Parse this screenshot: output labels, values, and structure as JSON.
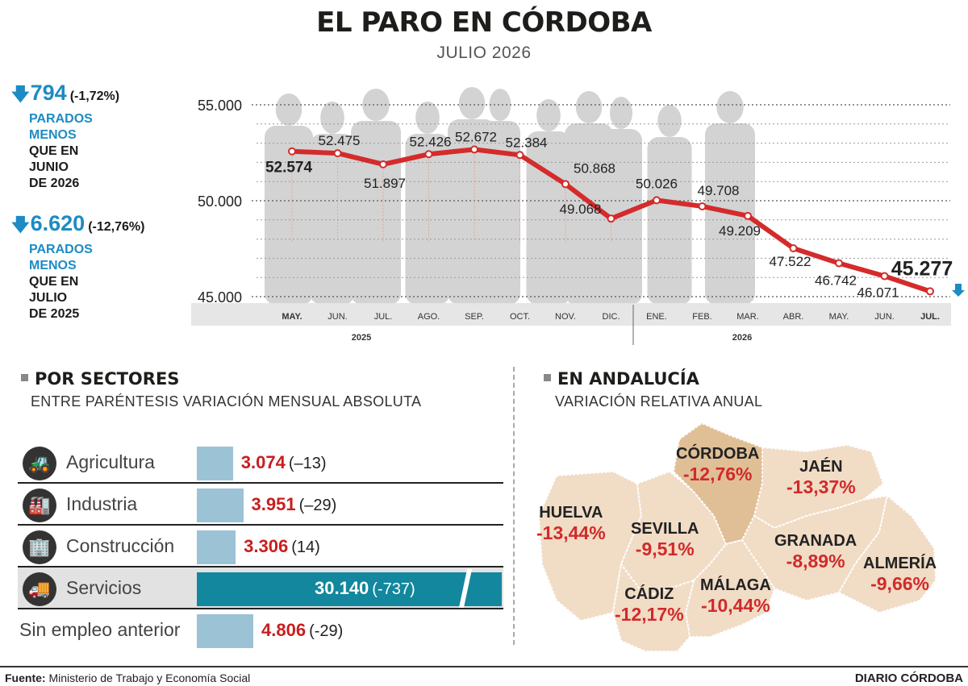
{
  "header": {
    "title": "EL PARO EN CÓRDOBA",
    "subtitle": "JULIO 2026"
  },
  "stats": [
    {
      "value": "794",
      "pct": "(-1,72%)",
      "line1": "PARADOS",
      "line2": "MENOS",
      "line3": "QUE EN",
      "line4": "JUNIO",
      "line5": "DE 2026"
    },
    {
      "value": "6.620",
      "pct": "(-12,76%)",
      "line1": "PARADOS",
      "line2": "MENOS",
      "line3": "QUE EN",
      "line4": "JULIO",
      "line5": "DE 2025"
    }
  ],
  "colors": {
    "line": "#d42b2b",
    "accent_blue": "#1d8bc4",
    "silhouette": "#d3d3d3",
    "servicios_bar": "#12879e",
    "sector_bar": "#9cc2d6",
    "map_fill": "#f1dcc5",
    "map_highlight": "#e0bf97"
  },
  "chart_data": {
    "type": "line",
    "categories": [
      "MAY.",
      "JUN.",
      "JUL.",
      "AGO.",
      "SEP.",
      "OCT.",
      "NOV.",
      "DIC.",
      "ENE.",
      "FEB.",
      "MAR.",
      "ABR.",
      "MAY.",
      "JUN.",
      "JUL."
    ],
    "values": [
      52574,
      52475,
      51897,
      52426,
      52672,
      52384,
      50868,
      49068,
      50026,
      49708,
      49209,
      47522,
      46742,
      46071,
      45277
    ],
    "value_labels": [
      "52.574",
      "52.475",
      "51.897",
      "52.426",
      "52.672",
      "52.384",
      "50.868",
      "49.068",
      "50.026",
      "49.708",
      "49.209",
      "47.522",
      "46.742",
      "46.071",
      "45.277"
    ],
    "years": [
      {
        "label": "2025"
      },
      {
        "label": "2026"
      }
    ],
    "yticks": [
      {
        "value": 55000,
        "label": "55.000"
      },
      {
        "value": 50000,
        "label": "50.000"
      },
      {
        "value": 45000,
        "label": "45.000"
      }
    ],
    "ylim": [
      45000,
      55000
    ],
    "grid": true
  },
  "sectors": {
    "title": "POR SECTORES",
    "subtitle": "ENTRE PARÉNTESIS VARIACIÓN MENSUAL ABSOLUTA",
    "max_value": 30140,
    "items": [
      {
        "name": "Agricultura",
        "value": 3074,
        "value_label": "3.074",
        "change": "(–13)",
        "icon": "tractor-icon"
      },
      {
        "name": "Industria",
        "value": 3951,
        "value_label": "3.951",
        "change": "(–29)",
        "icon": "factory-icon"
      },
      {
        "name": "Construcción",
        "value": 3306,
        "value_label": "3.306",
        "change": "(14)",
        "icon": "buildings-icon"
      },
      {
        "name": "Servicios",
        "value": 30140,
        "value_label": "30.140",
        "change": "(-737)",
        "icon": "truck-icon"
      },
      {
        "name": "Sin empleo anterior",
        "value": 4806,
        "value_label": "4.806",
        "change": "(-29)",
        "icon": ""
      }
    ]
  },
  "andalucia": {
    "title": "EN ANDALUCÍA",
    "subtitle": "VARIACIÓN RELATIVA ANUAL",
    "provinces": [
      {
        "name": "CÓRDOBA",
        "value": "-12,76%"
      },
      {
        "name": "JAÉN",
        "value": "-13,37%"
      },
      {
        "name": "HUELVA",
        "value": "-13,44%"
      },
      {
        "name": "SEVILLA",
        "value": "-9,51%"
      },
      {
        "name": "GRANADA",
        "value": "-8,89%"
      },
      {
        "name": "ALMERÍA",
        "value": "-9,66%"
      },
      {
        "name": "MÁLAGA",
        "value": "-10,44%"
      },
      {
        "name": "CÁDIZ",
        "value": "-12,17%"
      }
    ]
  },
  "footer": {
    "source_label": "Fuente:",
    "source": "Ministerio de Trabajo y Economía Social",
    "brand": "DIARIO CÓRDOBA"
  }
}
